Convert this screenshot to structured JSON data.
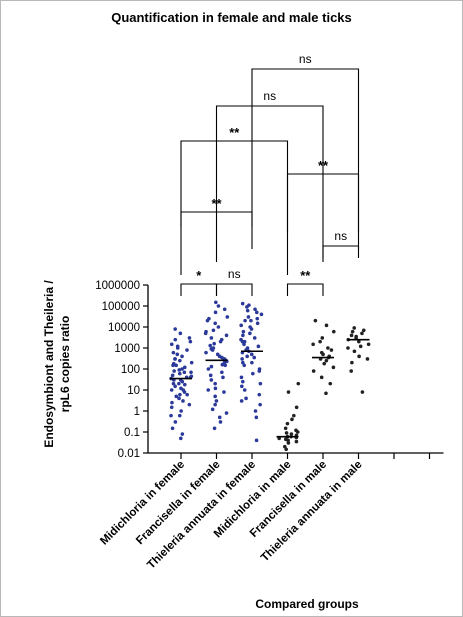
{
  "chart_data": {
    "type": "scatter",
    "title": "Quantification in female and male ticks",
    "xlabel": "Compared groups",
    "ylabel": "Endosymbiont and Theileria / rpL6 copies ratio",
    "yscale": "log",
    "ylim": [
      0.01,
      1000000
    ],
    "yticks": [
      "1000000",
      "100000",
      "10000",
      "1000",
      "100",
      "10",
      "1",
      "0.1",
      "0.01"
    ],
    "categories": [
      "Midichloria in female",
      "Francisella in female",
      "Thieleria annuata in female",
      "Midichloria in male",
      "Francisella in male",
      "Thieleria annuata in male"
    ],
    "series_colors": [
      "#2b3a9a",
      "#2b3a9a",
      "#2b3a9a",
      "#222222",
      "#222222",
      "#222222"
    ],
    "medians": [
      35,
      260,
      700,
      0.06,
      350,
      2500
    ],
    "values": [
      [
        0.05,
        0.08,
        0.15,
        0.3,
        0.6,
        1,
        1.5,
        2,
        3,
        4,
        5,
        6,
        8,
        10,
        12,
        15,
        18,
        20,
        25,
        30,
        30,
        35,
        40,
        45,
        50,
        60,
        70,
        80,
        90,
        100,
        120,
        150,
        180,
        200,
        250,
        300,
        400,
        500,
        600,
        800,
        1000,
        1200,
        1500,
        2000,
        2500,
        3000,
        5000,
        8000,
        10,
        20,
        40,
        70,
        150,
        300,
        6,
        2.5,
        0.6
      ],
      [
        0.15,
        0.3,
        0.5,
        0.8,
        1.2,
        2,
        3,
        5,
        8,
        12,
        20,
        30,
        50,
        70,
        100,
        130,
        160,
        200,
        230,
        260,
        300,
        350,
        400,
        500,
        600,
        800,
        1000,
        1300,
        1600,
        2000,
        2500,
        3000,
        4000,
        5000,
        7000,
        10000,
        15000,
        20000,
        30000,
        50000,
        70000,
        100000,
        150000,
        10,
        40,
        150,
        900,
        6000,
        25000
      ],
      [
        0.04,
        0.5,
        1,
        2,
        4,
        6,
        10,
        15,
        25,
        40,
        60,
        80,
        100,
        150,
        200,
        300,
        400,
        500,
        600,
        700,
        800,
        1000,
        1200,
        1500,
        2000,
        2500,
        3000,
        4000,
        5000,
        6000,
        8000,
        10000,
        12000,
        15000,
        20000,
        25000,
        30000,
        40000,
        50000,
        70000,
        90000,
        110000,
        130000,
        20,
        200,
        2000,
        20000,
        60000,
        3,
        350
      ],
      [
        0.015,
        0.02,
        0.03,
        0.035,
        0.04,
        0.045,
        0.05,
        0.055,
        0.06,
        0.06,
        0.07,
        0.08,
        0.09,
        0.1,
        0.12,
        0.15,
        0.25,
        0.4,
        0.6,
        1.5,
        8,
        20
      ],
      [
        7,
        20,
        40,
        80,
        120,
        180,
        250,
        300,
        350,
        400,
        500,
        600,
        800,
        1000,
        1500,
        2000,
        3000,
        6000,
        12000,
        20000
      ],
      [
        8,
        80,
        200,
        400,
        700,
        1000,
        1500,
        2000,
        2500,
        3000,
        4000,
        5000,
        6000,
        7000,
        9000,
        300,
        1200,
        3500
      ]
    ],
    "comparisons": [
      {
        "groups": [
          1,
          2
        ],
        "label": "*"
      },
      {
        "groups": [
          2,
          3
        ],
        "label": "ns"
      },
      {
        "groups": [
          4,
          5
        ],
        "label": "**"
      },
      {
        "groups": [
          5,
          6
        ],
        "label": "ns"
      },
      {
        "groups": [
          1,
          3
        ],
        "label": "**"
      },
      {
        "groups": [
          4,
          6
        ],
        "label": "**"
      },
      {
        "groups": [
          1,
          4
        ],
        "label": "**"
      },
      {
        "groups": [
          2,
          5
        ],
        "label": "ns"
      },
      {
        "groups": [
          3,
          6
        ],
        "label": "ns"
      }
    ],
    "grid": false,
    "legend": "none"
  }
}
